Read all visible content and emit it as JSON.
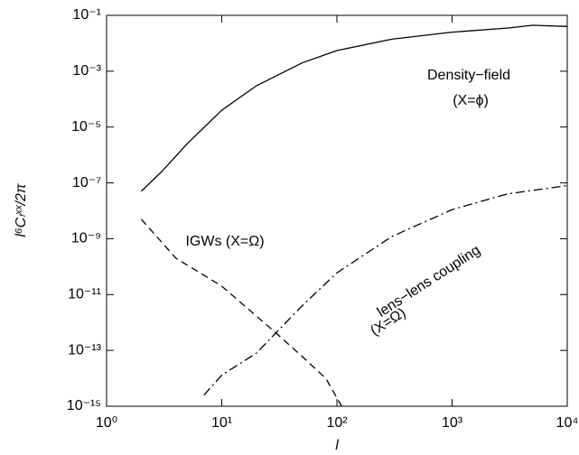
{
  "chart_data": {
    "type": "line",
    "xlabel": "l",
    "ylabel": "l⁶Cₗˣˣ/2π",
    "xscale": "log",
    "yscale": "log",
    "xlim": [
      1,
      10000
    ],
    "xticks": [
      {
        "value": 1,
        "label": "10⁰"
      },
      {
        "value": 10,
        "label": "10¹"
      },
      {
        "value": 100,
        "label": "10²"
      },
      {
        "value": 1000,
        "label": "10³"
      },
      {
        "value": 10000,
        "label": "10⁴"
      }
    ],
    "ylim": [
      1e-15,
      0.1
    ],
    "yticks": [
      {
        "value": 1e-15,
        "label": "10⁻¹⁵"
      },
      {
        "value": 1e-13,
        "label": "10⁻¹³"
      },
      {
        "value": 1e-11,
        "label": "10⁻¹¹"
      },
      {
        "value": 1e-09,
        "label": "10⁻⁹"
      },
      {
        "value": 1e-07,
        "label": "10⁻⁷"
      },
      {
        "value": 1e-05,
        "label": "10⁻⁵"
      },
      {
        "value": 0.001,
        "label": "10⁻³"
      },
      {
        "value": 0.1,
        "label": "10⁻¹"
      }
    ],
    "series": [
      {
        "color": "#000000",
        "linestyle": "solid",
        "x": [
          2,
          3,
          5,
          10,
          20,
          50,
          100,
          300,
          1000,
          3000,
          5000,
          10000
        ],
        "values": [
          5e-08,
          2.5e-07,
          2.5e-06,
          4e-05,
          0.0003,
          0.002,
          0.0055,
          0.014,
          0.025,
          0.035,
          0.044,
          0.04
        ]
      },
      {
        "color": "#000000",
        "linestyle": "dashed",
        "x": [
          2,
          4,
          10,
          30,
          50,
          80,
          100,
          110
        ],
        "values": [
          5e-09,
          2e-10,
          2e-11,
          4e-13,
          6e-14,
          1e-14,
          2e-15,
          1e-15
        ]
      },
      {
        "color": "#000000",
        "linestyle": "dashdot",
        "x": [
          7,
          10,
          20,
          50,
          100,
          300,
          1000,
          3000,
          10000
        ],
        "values": [
          2.5e-15,
          1.3e-14,
          8e-14,
          4e-12,
          6e-11,
          1.2e-09,
          1.1e-08,
          4e-08,
          8e-08
        ]
      }
    ],
    "annotations": [
      "Density−field",
      "(X=ϕ)",
      "IGWs (X=Ω)",
      "lens−lens coupling",
      "(X=Ω)"
    ]
  }
}
